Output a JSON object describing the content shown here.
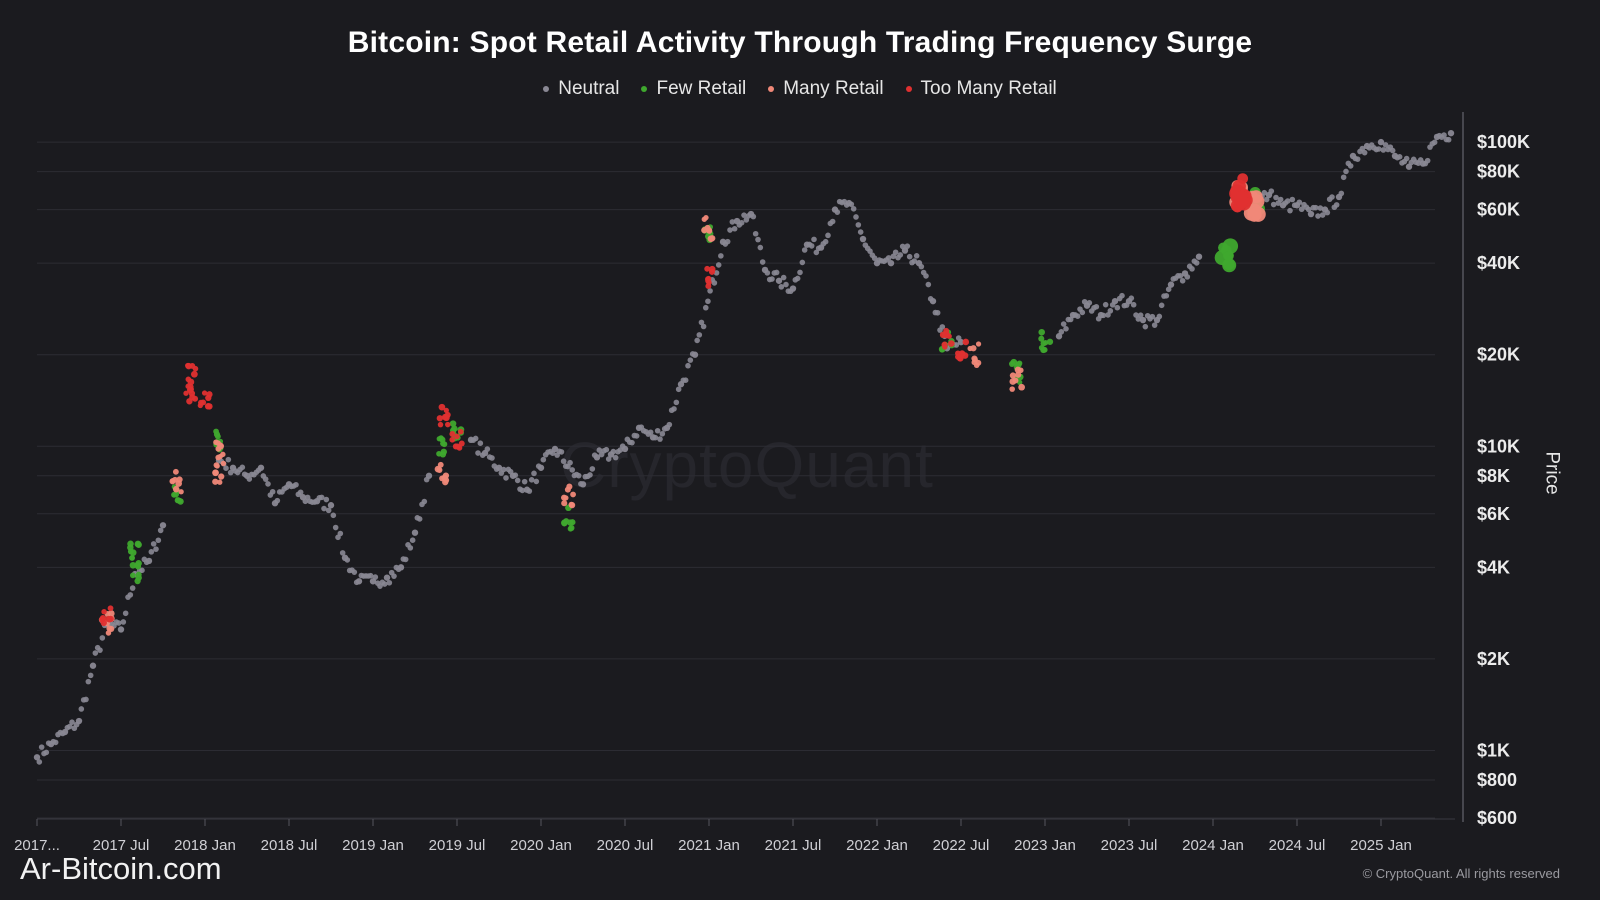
{
  "title": "Bitcoin: Spot Retail Activity Through Trading Frequency Surge",
  "watermark": "CryptoQuant",
  "site_label": "Ar-Bitcoin.com",
  "copyright": "© CryptoQuant. All rights reserved",
  "legend": [
    {
      "name": "Neutral",
      "color": "#8a8894"
    },
    {
      "name": "Few Retail",
      "color": "#3fa82e"
    },
    {
      "name": "Many Retail",
      "color": "#f08878"
    },
    {
      "name": "Too Many Retail",
      "color": "#e03030"
    }
  ],
  "chart_data": {
    "type": "scatter",
    "title": "Bitcoin: Spot Retail Activity Through Trading Frequency Surge",
    "ylabel": "Price",
    "y_scale": "log",
    "ylim": [
      600,
      120000
    ],
    "x_ticks": [
      "2017...",
      "2017 Jul",
      "2018 Jan",
      "2018 Jul",
      "2019 Jan",
      "2019 Jul",
      "2020 Jan",
      "2020 Jul",
      "2021 Jan",
      "2021 Jul",
      "2022 Jan",
      "2022 Jul",
      "2023 Jan",
      "2023 Jul",
      "2024 Jan",
      "2024 Jul",
      "2025 Jan"
    ],
    "y_ticks": [
      {
        "label": "$100K",
        "value": 100000
      },
      {
        "label": "$80K",
        "value": 80000
      },
      {
        "label": "$60K",
        "value": 60000
      },
      {
        "label": "$40K",
        "value": 40000
      },
      {
        "label": "$20K",
        "value": 20000
      },
      {
        "label": "$10K",
        "value": 10000
      },
      {
        "label": "$8K",
        "value": 8000
      },
      {
        "label": "$6K",
        "value": 6000
      },
      {
        "label": "$4K",
        "value": 4000
      },
      {
        "label": "$2K",
        "value": 2000
      },
      {
        "label": "$1K",
        "value": 1000
      },
      {
        "label": "$800",
        "value": 800
      },
      {
        "label": "$600",
        "value": 600
      }
    ],
    "grid": true,
    "legend_position": "top-center",
    "series": [
      {
        "name": "Neutral",
        "color": "#8a8894",
        "points": [
          [
            "2017-01",
            950
          ],
          [
            "2017-02",
            1050
          ],
          [
            "2017-03",
            1150
          ],
          [
            "2017-04",
            1250
          ],
          [
            "2017-05",
            1900
          ],
          [
            "2017-06",
            2600
          ],
          [
            "2017-07",
            2500
          ],
          [
            "2017-08",
            3800
          ],
          [
            "2017-09",
            4200
          ],
          [
            "2017-10",
            5500
          ],
          [
            "2018-02",
            9000
          ],
          [
            "2018-03",
            8500
          ],
          [
            "2018-04",
            8000
          ],
          [
            "2018-05",
            8500
          ],
          [
            "2018-06",
            6500
          ],
          [
            "2018-07",
            7500
          ],
          [
            "2018-08",
            6800
          ],
          [
            "2018-09",
            6600
          ],
          [
            "2018-10",
            6400
          ],
          [
            "2018-11",
            4300
          ],
          [
            "2018-12",
            3600
          ],
          [
            "2019-01",
            3600
          ],
          [
            "2019-02",
            3700
          ],
          [
            "2019-03",
            4000
          ],
          [
            "2019-04",
            5200
          ],
          [
            "2019-05",
            8000
          ],
          [
            "2019-08",
            10500
          ],
          [
            "2019-09",
            9500
          ],
          [
            "2019-10",
            8500
          ],
          [
            "2019-11",
            8000
          ],
          [
            "2019-12",
            7200
          ],
          [
            "2020-01",
            8500
          ],
          [
            "2020-02",
            9800
          ],
          [
            "2020-04",
            7500
          ],
          [
            "2020-05",
            9200
          ],
          [
            "2020-06",
            9400
          ],
          [
            "2020-07",
            9800
          ],
          [
            "2020-08",
            11500
          ],
          [
            "2020-09",
            10700
          ],
          [
            "2020-10",
            11500
          ],
          [
            "2020-11",
            16000
          ],
          [
            "2020-12",
            20000
          ],
          [
            "2021-02",
            47000
          ],
          [
            "2021-03",
            55000
          ],
          [
            "2021-04",
            58000
          ],
          [
            "2021-05",
            38000
          ],
          [
            "2021-06",
            35000
          ],
          [
            "2021-07",
            33000
          ],
          [
            "2021-08",
            46000
          ],
          [
            "2021-09",
            45000
          ],
          [
            "2021-10",
            60000
          ],
          [
            "2021-11",
            63000
          ],
          [
            "2021-12",
            48000
          ],
          [
            "2022-01",
            40000
          ],
          [
            "2022-02",
            40000
          ],
          [
            "2022-03",
            44000
          ],
          [
            "2022-04",
            40000
          ],
          [
            "2022-05",
            30000
          ],
          [
            "2022-06",
            21000
          ],
          [
            "2022-07",
            22000
          ],
          [
            "2023-02",
            23000
          ],
          [
            "2023-03",
            27000
          ],
          [
            "2023-04",
            29000
          ],
          [
            "2023-05",
            27000
          ],
          [
            "2023-06",
            30000
          ],
          [
            "2023-07",
            30000
          ],
          [
            "2023-08",
            26000
          ],
          [
            "2023-09",
            26000
          ],
          [
            "2023-10",
            34000
          ],
          [
            "2023-11",
            37000
          ],
          [
            "2023-12",
            42000
          ],
          [
            "2024-04",
            64000
          ],
          [
            "2024-05",
            67000
          ],
          [
            "2024-06",
            62000
          ],
          [
            "2024-07",
            62000
          ],
          [
            "2024-08",
            58000
          ],
          [
            "2024-09",
            60000
          ],
          [
            "2024-10",
            66000
          ],
          [
            "2024-11",
            90000
          ],
          [
            "2024-12",
            97000
          ],
          [
            "2025-01",
            100000
          ],
          [
            "2025-02",
            90000
          ],
          [
            "2025-03",
            83000
          ],
          [
            "2025-04",
            85000
          ],
          [
            "2025-05",
            104000
          ],
          [
            "2025-06",
            107000
          ]
        ]
      },
      {
        "name": "Few Retail",
        "color": "#3fa82e",
        "points": [
          [
            "2017-08",
            4400
          ],
          [
            "2017-08",
            3900
          ],
          [
            "2017-11",
            7000
          ],
          [
            "2018-02",
            10500
          ],
          [
            "2019-06",
            10000
          ],
          [
            "2019-07",
            11500
          ],
          [
            "2020-03",
            5800
          ],
          [
            "2021-01",
            50000
          ],
          [
            "2022-06",
            22000
          ],
          [
            "2022-11",
            17500
          ],
          [
            "2023-01",
            22500
          ],
          [
            "2024-02",
            42000
          ],
          [
            "2024-04",
            64000
          ]
        ]
      },
      {
        "name": "Many Retail",
        "color": "#f08878",
        "points": [
          [
            "2017-06",
            2600
          ],
          [
            "2017-11",
            7600
          ],
          [
            "2018-02",
            9500
          ],
          [
            "2018-02",
            8200
          ],
          [
            "2019-06",
            8200
          ],
          [
            "2020-03",
            6800
          ],
          [
            "2021-01",
            52000
          ],
          [
            "2022-08",
            20000
          ],
          [
            "2022-11",
            16500
          ],
          [
            "2024-03",
            68000
          ],
          [
            "2024-04",
            62000
          ]
        ]
      },
      {
        "name": "Too Many Retail",
        "color": "#e03030",
        "points": [
          [
            "2017-06",
            2800
          ],
          [
            "2017-12",
            17000
          ],
          [
            "2017-12",
            15000
          ],
          [
            "2018-01",
            14000
          ],
          [
            "2019-06",
            12500
          ],
          [
            "2019-07",
            10500
          ],
          [
            "2021-01",
            36000
          ],
          [
            "2022-06",
            23000
          ],
          [
            "2022-07",
            20500
          ],
          [
            "2024-03",
            70000
          ],
          [
            "2024-03",
            66000
          ]
        ]
      }
    ]
  }
}
